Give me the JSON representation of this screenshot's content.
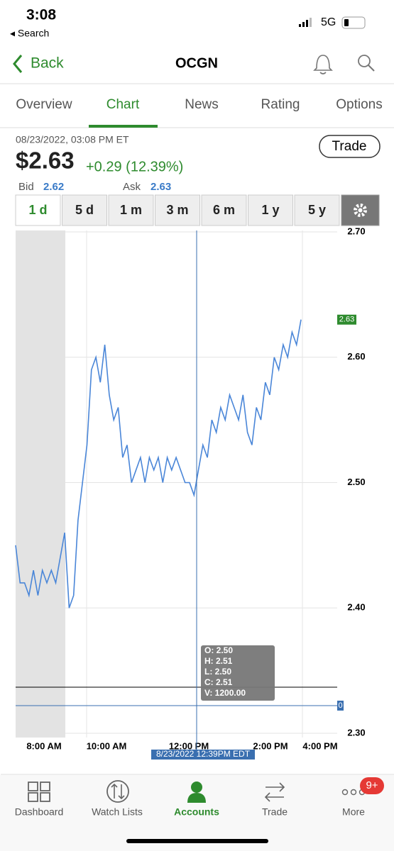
{
  "status_bar": {
    "time": "3:08",
    "back_app": "◂ Search",
    "network": "5G"
  },
  "nav": {
    "back": "Back",
    "title": "OCGN"
  },
  "tabs": [
    "Overview",
    "Chart",
    "News",
    "Rating",
    "Options"
  ],
  "quote": {
    "timestamp": "08/23/2022, 03:08 PM ET",
    "price": "$2.63",
    "change": "+0.29 (12.39%)",
    "bid_label": "Bid",
    "bid": "2.62",
    "ask_label": "Ask",
    "ask": "2.63",
    "trade_button": "Trade"
  },
  "ranges": [
    "1 d",
    "5 d",
    "1 m",
    "3 m",
    "6 m",
    "1 y",
    "5 y"
  ],
  "chart_data": {
    "type": "line",
    "color": "#4a86d8",
    "values": [
      2.45,
      2.42,
      2.42,
      2.41,
      2.43,
      2.41,
      2.43,
      2.42,
      2.43,
      2.42,
      2.44,
      2.46,
      2.4,
      2.41,
      2.47,
      2.5,
      2.53,
      2.59,
      2.6,
      2.58,
      2.61,
      2.57,
      2.55,
      2.56,
      2.52,
      2.53,
      2.5,
      2.51,
      2.52,
      2.5,
      2.52,
      2.51,
      2.52,
      2.5,
      2.52,
      2.51,
      2.52,
      2.51,
      2.5,
      2.5,
      2.49,
      2.51,
      2.53,
      2.52,
      2.55,
      2.54,
      2.56,
      2.55,
      2.57,
      2.56,
      2.55,
      2.57,
      2.54,
      2.53,
      2.56,
      2.55,
      2.58,
      2.57,
      2.6,
      2.59,
      2.61,
      2.6,
      2.62,
      2.61,
      2.63
    ],
    "ylim": [
      2.3,
      2.7
    ],
    "yticks": [
      {
        "value": 2.3,
        "label": "2.30"
      },
      {
        "value": 2.4,
        "label": "2.40"
      },
      {
        "value": 2.5,
        "label": "2.50"
      },
      {
        "value": 2.6,
        "label": "2.60"
      },
      {
        "value": 2.7,
        "label": "2.70"
      }
    ],
    "xtick_labels": [
      "8:00 AM",
      "10:00 AM",
      "12:00 PM",
      "2:00 PM",
      "4:00 PM"
    ],
    "price_tag": 2.63,
    "volume_label": "0",
    "crosshair_label": "8/23/2022 12:39PM EDT",
    "tooltip": [
      "O: 2.50",
      "H: 2.51",
      "L: 2.50",
      "C: 2.51",
      "V: 1200.00"
    ]
  },
  "bottom_nav": {
    "items": [
      "Dashboard",
      "Watch Lists",
      "Accounts",
      "Trade",
      "More"
    ],
    "badge": "9+"
  }
}
